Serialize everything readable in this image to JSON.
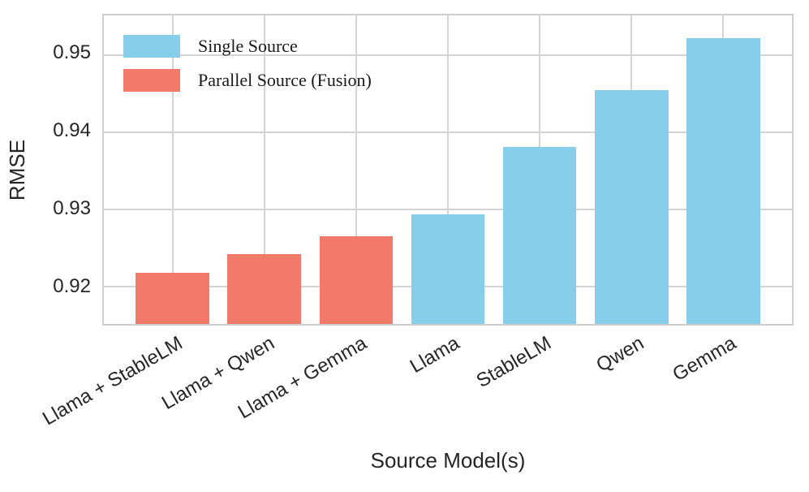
{
  "chart_data": {
    "type": "bar",
    "title": "",
    "xlabel": "Source Model(s)",
    "ylabel": "RMSE",
    "categories": [
      "Llama + StableLM",
      "Llama + Qwen",
      "Llama + Gemma",
      "Llama",
      "StableLM",
      "Qwen",
      "Gemma"
    ],
    "values": [
      0.9216,
      0.9241,
      0.9264,
      0.9292,
      0.938,
      0.9453,
      0.9521
    ],
    "groups": [
      "fusion",
      "fusion",
      "fusion",
      "single",
      "single",
      "single",
      "single"
    ],
    "group_colors": {
      "single": "#87CEEB",
      "fusion": "#F3796B"
    },
    "ylim": [
      0.915,
      0.955
    ],
    "yticks": [
      0.92,
      0.93,
      0.94,
      0.95
    ],
    "ytick_decimals": 2,
    "grid": true,
    "grid_color": "#d4d4d4",
    "bar_width_fraction": 0.8,
    "xtick_rotation_deg": 30,
    "legend": {
      "position": "upper-left",
      "frame": false,
      "entries": [
        {
          "label": "Single Source",
          "group": "single",
          "color": "#87CEEB"
        },
        {
          "label": "Parallel Source (Fusion)",
          "group": "fusion",
          "color": "#F3796B"
        }
      ]
    }
  }
}
